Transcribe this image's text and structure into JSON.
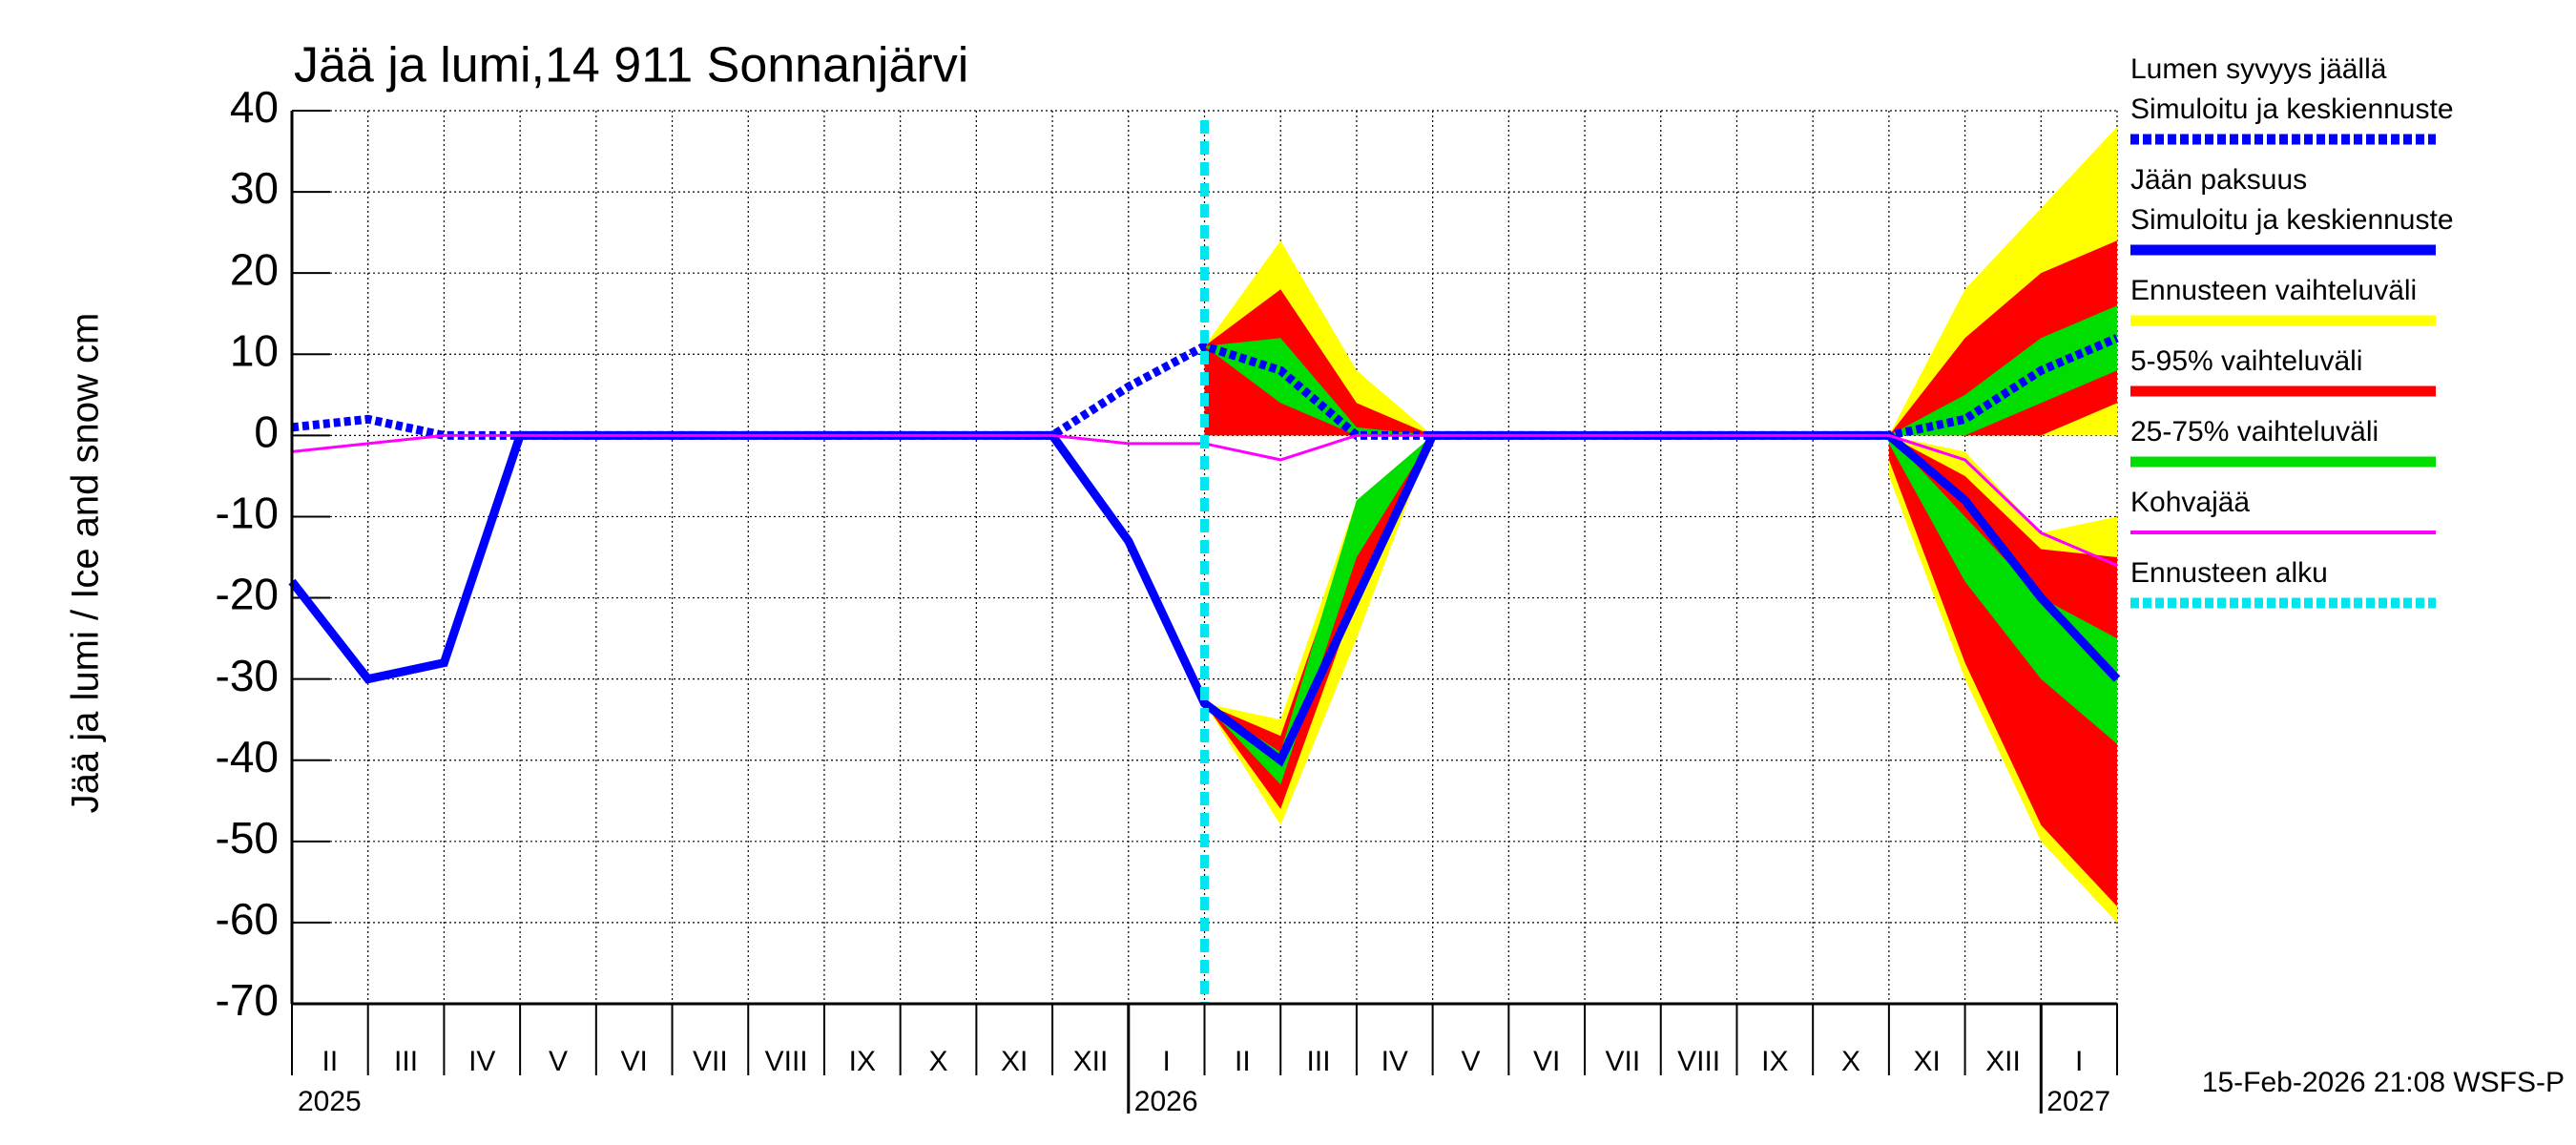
{
  "chart_data": {
    "type": "line",
    "title": "Jää ja lumi,14 911 Sonnanjärvi",
    "y_label": "Jää ja lumi / Ice and snow    cm",
    "footer": "15-Feb-2026 21:08 WSFS-P",
    "x": [
      "2025-02",
      "2025-03",
      "2025-04",
      "2025-05",
      "2025-06",
      "2025-07",
      "2025-08",
      "2025-09",
      "2025-10",
      "2025-11",
      "2025-12",
      "2026-01",
      "2026-02",
      "2026-03",
      "2026-04",
      "2026-05",
      "2026-06",
      "2026-07",
      "2026-08",
      "2026-09",
      "2026-10",
      "2026-11",
      "2026-12",
      "2027-01",
      "2027-02"
    ],
    "xlim": [
      "2025-02",
      "2027-02"
    ],
    "month_labels": [
      "II",
      "III",
      "IV",
      "V",
      "VI",
      "VII",
      "VIII",
      "IX",
      "X",
      "XI",
      "XII",
      "I",
      "II",
      "III",
      "IV",
      "V",
      "VI",
      "VII",
      "VIII",
      "IX",
      "X",
      "XI",
      "XII",
      "I"
    ],
    "years": [
      {
        "label": "2025",
        "x": "2025-02"
      },
      {
        "label": "2026",
        "x": "2026-01"
      },
      {
        "label": "2027",
        "x": "2027-01"
      }
    ],
    "ylim": [
      -70,
      40
    ],
    "yticks": [
      -70,
      -60,
      -50,
      -40,
      -30,
      -20,
      -10,
      0,
      10,
      20,
      30,
      40
    ],
    "grid": true,
    "bands": [
      {
        "name": "Ennusteen vaihteluväli",
        "color": "#ffff00",
        "snow_upper": [
          null,
          null,
          null,
          null,
          null,
          null,
          null,
          null,
          null,
          null,
          null,
          null,
          11,
          24,
          8,
          0,
          null,
          null,
          null,
          null,
          null,
          0,
          18,
          28,
          38
        ],
        "snow_lower": [
          null,
          null,
          null,
          null,
          null,
          null,
          null,
          null,
          null,
          null,
          null,
          null,
          0,
          0,
          0,
          0,
          null,
          null,
          null,
          null,
          null,
          0,
          0,
          0,
          0
        ],
        "ice_upper": [
          null,
          null,
          null,
          null,
          null,
          null,
          null,
          null,
          null,
          null,
          null,
          null,
          -33,
          -35,
          -8,
          0,
          null,
          null,
          null,
          null,
          null,
          0,
          -2,
          -12,
          -10
        ],
        "ice_lower": [
          null,
          null,
          null,
          null,
          null,
          null,
          null,
          null,
          null,
          null,
          null,
          null,
          -33,
          -48,
          -25,
          0,
          null,
          null,
          null,
          null,
          null,
          -5,
          -30,
          -50,
          -60
        ]
      },
      {
        "name": "5-95% vaihteluväli",
        "color": "#ff0000",
        "snow_upper": [
          null,
          null,
          null,
          null,
          null,
          null,
          null,
          null,
          null,
          null,
          null,
          null,
          11,
          18,
          4,
          0,
          null,
          null,
          null,
          null,
          null,
          0,
          12,
          20,
          24
        ],
        "snow_lower": [
          null,
          null,
          null,
          null,
          null,
          null,
          null,
          null,
          null,
          null,
          null,
          null,
          0,
          0,
          0,
          0,
          null,
          null,
          null,
          null,
          null,
          0,
          0,
          0,
          4
        ],
        "ice_upper": [
          null,
          null,
          null,
          null,
          null,
          null,
          null,
          null,
          null,
          null,
          null,
          null,
          -33,
          -37,
          -10,
          0,
          null,
          null,
          null,
          null,
          null,
          0,
          -5,
          -14,
          -15
        ],
        "ice_lower": [
          null,
          null,
          null,
          null,
          null,
          null,
          null,
          null,
          null,
          null,
          null,
          null,
          -33,
          -46,
          -20,
          0,
          null,
          null,
          null,
          null,
          null,
          -3,
          -28,
          -48,
          -58
        ]
      },
      {
        "name": "25-75% vaihteluväli",
        "color": "#00dd00",
        "snow_upper": [
          null,
          null,
          null,
          null,
          null,
          null,
          null,
          null,
          null,
          null,
          null,
          null,
          11,
          12,
          1,
          0,
          null,
          null,
          null,
          null,
          null,
          0,
          5,
          12,
          16
        ],
        "snow_lower": [
          null,
          null,
          null,
          null,
          null,
          null,
          null,
          null,
          null,
          null,
          null,
          null,
          11,
          4,
          0,
          0,
          null,
          null,
          null,
          null,
          null,
          0,
          0,
          4,
          8
        ],
        "ice_upper": [
          null,
          null,
          null,
          null,
          null,
          null,
          null,
          null,
          null,
          null,
          null,
          null,
          -33,
          -39,
          -8,
          0,
          null,
          null,
          null,
          null,
          null,
          0,
          -10,
          -20,
          -25
        ],
        "ice_lower": [
          null,
          null,
          null,
          null,
          null,
          null,
          null,
          null,
          null,
          null,
          null,
          null,
          -33,
          -43,
          -15,
          0,
          null,
          null,
          null,
          null,
          null,
          -1,
          -18,
          -30,
          -38
        ]
      }
    ],
    "series": [
      {
        "name": "Lumen syvyys jäällä",
        "label": "Simuloitu ja keskiennuste",
        "color": "#0000ff",
        "dashed": true,
        "values": [
          1,
          2,
          0,
          0,
          0,
          0,
          0,
          0,
          0,
          0,
          0,
          6,
          11,
          8,
          0,
          0,
          0,
          0,
          0,
          0,
          0,
          0,
          2,
          8,
          12
        ]
      },
      {
        "name": "Jään paksuus",
        "label": "Simuloitu ja keskiennuste",
        "color": "#0000ff",
        "dashed": false,
        "values": [
          -18,
          -30,
          -28,
          0,
          0,
          0,
          0,
          0,
          0,
          0,
          0,
          -13,
          -33,
          -40,
          -20,
          0,
          0,
          0,
          0,
          0,
          0,
          0,
          -8,
          -20,
          -30
        ]
      },
      {
        "name": "Kohvajää",
        "color": "#ff00ff",
        "dashed": false,
        "thin": true,
        "values": [
          -2,
          -1,
          0,
          0,
          0,
          0,
          0,
          0,
          0,
          0,
          0,
          -1,
          -1,
          -3,
          0,
          0,
          0,
          0,
          0,
          0,
          0,
          0,
          -3,
          -12,
          -16
        ]
      }
    ],
    "forecast_start": {
      "name": "Ennusteen alku",
      "x": "2026-02",
      "color": "#00e5ee"
    }
  }
}
